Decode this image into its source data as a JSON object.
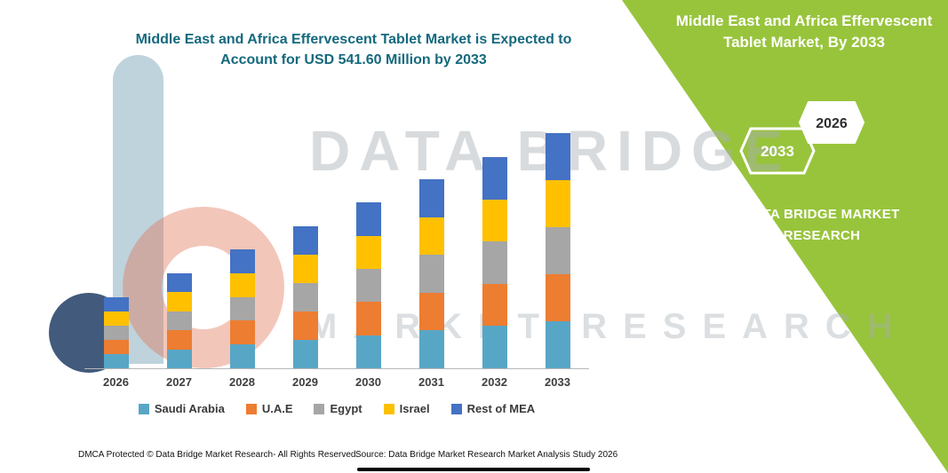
{
  "title": {
    "line1": "Middle East and Africa Effervescent Tablet Market is Expected to",
    "line2": "Account for USD 541.60 Million by 2033"
  },
  "side_panel": {
    "title_line1": "Middle East and Africa Effervescent",
    "title_line2": "Tablet Market, By 2033",
    "badge_forecast_year": "2033",
    "badge_base_year": "2026",
    "brand_line1": "DATA BRIDGE MARKET",
    "brand_line2": "RESEARCH",
    "panel_color": "#98c43c"
  },
  "watermark": {
    "line1": "DATA BRIDGE",
    "line2": "MARKET RESEARCH"
  },
  "footer": {
    "dmca": "DMCA Protected © Data Bridge Market Research-  All Rights Reserved.",
    "source": "Source: Data Bridge Market Research  Market Analysis Study 2026"
  },
  "colors": {
    "title_teal": "#15697e",
    "accent_green": "#98c43c"
  },
  "chart_data": {
    "type": "bar",
    "stacked": true,
    "title": "Middle East and Africa Effervescent Tablet Market is Expected to Account for USD 541.60 Million by 2033",
    "units": "USD Million",
    "categories": [
      "2026",
      "2027",
      "2028",
      "2029",
      "2030",
      "2031",
      "2032",
      "2033"
    ],
    "series": [
      {
        "name": "Saudi Arabia",
        "color": "#58a6c6",
        "values": [
          33.0,
          44.0,
          55.0,
          65.5,
          76.5,
          87.0,
          97.5,
          108.5
        ]
      },
      {
        "name": "U.A.E",
        "color": "#ed7d31",
        "values": [
          32.5,
          43.5,
          54.5,
          65.5,
          76.5,
          87.0,
          97.0,
          108.0
        ]
      },
      {
        "name": "Egypt",
        "color": "#a6a6a6",
        "values": [
          33.0,
          44.0,
          55.0,
          65.5,
          76.5,
          87.0,
          97.5,
          108.5
        ]
      },
      {
        "name": "Israel",
        "color": "#ffc000",
        "values": [
          32.5,
          43.5,
          54.5,
          65.0,
          76.0,
          87.0,
          97.0,
          108.0
        ]
      },
      {
        "name": "Rest of MEA",
        "color": "#4472c4",
        "values": [
          32.5,
          43.7,
          54.9,
          65.5,
          76.7,
          87.3,
          97.4,
          108.6
        ]
      }
    ],
    "totals": [
      163.5,
      218.7,
      273.9,
      327.0,
      382.2,
      435.3,
      486.4,
      541.6
    ],
    "highlight_total_2033": 541.6,
    "ylim": [
      0,
      560
    ],
    "grid": false,
    "legend_position": "bottom"
  }
}
